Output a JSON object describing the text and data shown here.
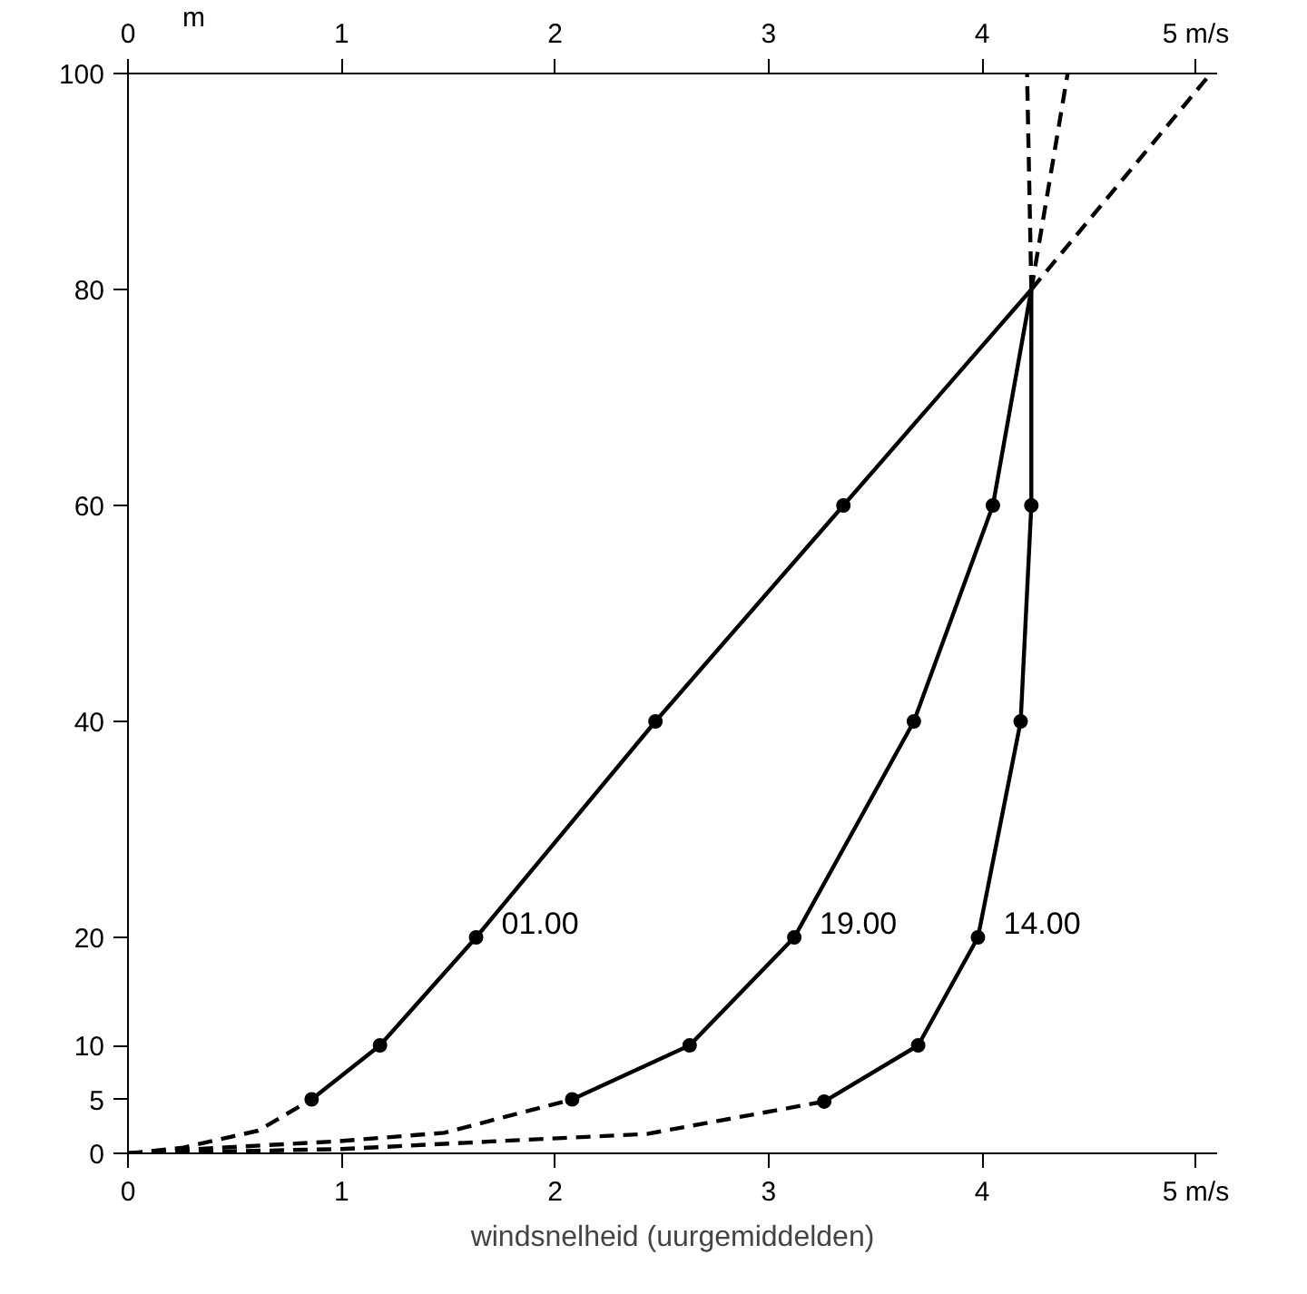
{
  "chart_data": {
    "type": "line",
    "xlabel": "windsnelheid (uurgemiddelden)",
    "ylabel": "m",
    "xlim": [
      0,
      5.1
    ],
    "xticks": [
      0,
      1,
      2,
      3,
      4,
      {
        "value": 5,
        "label": "5 m/s"
      }
    ],
    "x2lim": [
      0,
      5.1
    ],
    "x2ticks": [
      0,
      1,
      2,
      3,
      4,
      {
        "value": 5,
        "label": "5 m/s"
      }
    ],
    "ylim": [
      0,
      100
    ],
    "yticks": [
      0,
      5,
      10,
      20,
      40,
      60,
      80,
      100
    ],
    "grid": false,
    "series": [
      {
        "name": "01.00",
        "color": "#000000",
        "marker": "circle",
        "line_style": "solid",
        "x": [
          0.86,
          1.18,
          1.63,
          2.47,
          3.35
        ],
        "values": [
          5,
          10,
          20,
          40,
          60
        ]
      },
      {
        "color": "#000000",
        "marker": "none",
        "line_style": "solid",
        "x": [
          3.35,
          4.23
        ],
        "values": [
          60,
          80
        ]
      },
      {
        "color": "#000000",
        "marker": "none",
        "line_style": "dashed",
        "x": [
          0,
          0.25,
          0.61,
          0.86
        ],
        "values": [
          0,
          0.5,
          2.1,
          5
        ]
      },
      {
        "color": "#000000",
        "marker": "none",
        "line_style": "dashed",
        "x": [
          4.23,
          5.07
        ],
        "values": [
          80,
          100
        ]
      },
      {
        "name": "19.00",
        "color": "#000000",
        "marker": "circle",
        "line_style": "solid",
        "x": [
          2.08,
          2.63,
          3.12,
          3.68,
          4.05
        ],
        "values": [
          5,
          10,
          20,
          40,
          60
        ]
      },
      {
        "color": "#000000",
        "marker": "none",
        "line_style": "solid",
        "x": [
          4.05,
          4.23
        ],
        "values": [
          60,
          80
        ]
      },
      {
        "color": "#000000",
        "marker": "none",
        "line_style": "dashed",
        "x": [
          0,
          0.5,
          0.97,
          1.48,
          2.08
        ],
        "values": [
          0,
          0.6,
          1.1,
          1.9,
          5
        ]
      },
      {
        "color": "#000000",
        "marker": "none",
        "line_style": "dashed",
        "x": [
          4.23,
          4.4
        ],
        "values": [
          80,
          100
        ]
      },
      {
        "name": "14.00",
        "color": "#000000",
        "marker": "circle",
        "line_style": "solid",
        "x": [
          3.26,
          3.7,
          3.98,
          4.18,
          4.23
        ],
        "values": [
          4.8,
          10,
          20,
          40,
          60
        ]
      },
      {
        "color": "#000000",
        "marker": "none",
        "line_style": "solid",
        "x": [
          4.23,
          4.23
        ],
        "values": [
          60,
          80
        ]
      },
      {
        "color": "#000000",
        "marker": "none",
        "line_style": "dashed",
        "x": [
          0,
          1.0,
          1.7,
          2.43,
          3.26
        ],
        "values": [
          0,
          0.4,
          1.1,
          1.8,
          4.8
        ]
      },
      {
        "color": "#000000",
        "marker": "none",
        "line_style": "dashed",
        "x": [
          4.23,
          4.21
        ],
        "values": [
          80,
          100
        ]
      }
    ]
  }
}
